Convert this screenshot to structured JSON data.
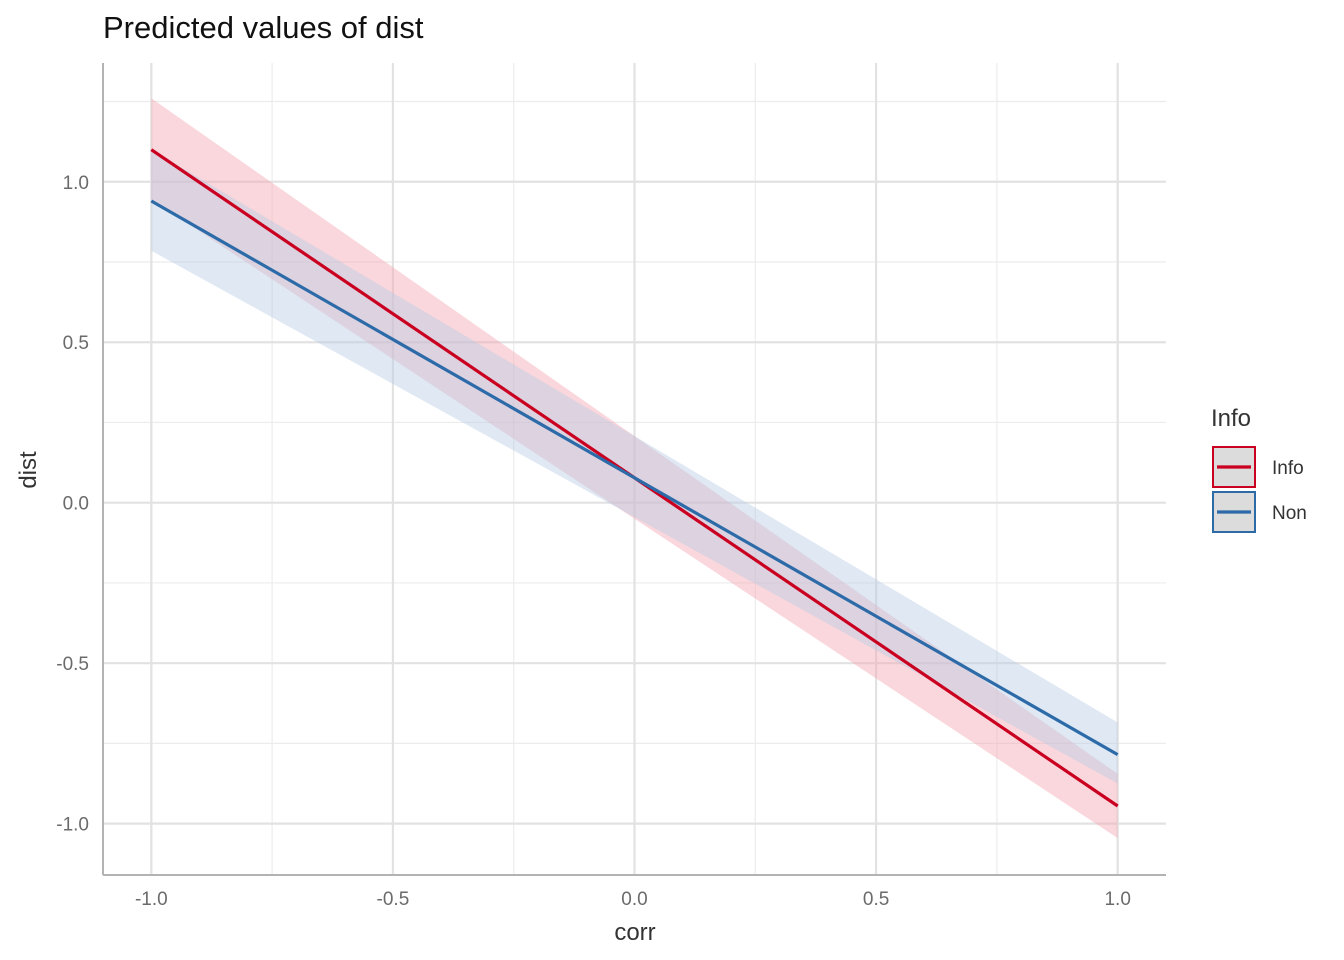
{
  "chart_data": {
    "type": "line",
    "title": "Predicted values of dist",
    "xlabel": "corr",
    "ylabel": "dist",
    "xlim": [
      -1.1,
      1.1
    ],
    "ylim": [
      -1.16,
      1.37
    ],
    "x_ticks": [
      -1.0,
      -0.5,
      0.0,
      0.5,
      1.0
    ],
    "x_tick_labels": [
      "-1.0",
      "-0.5",
      "0.0",
      "0.5",
      "1.0"
    ],
    "y_ticks": [
      -1.0,
      -0.5,
      0.0,
      0.5,
      1.0
    ],
    "y_tick_labels": [
      "-1.0",
      "-0.5",
      "0.0",
      "0.5",
      "1.0"
    ],
    "grid": true,
    "legend": {
      "title": "Info",
      "position": "right"
    },
    "series": [
      {
        "name": "Info",
        "color": "#ca0020",
        "band_color": "#f4a6b2",
        "x": [
          -1.0,
          1.0
        ],
        "y": [
          1.1,
          -0.945
        ],
        "ci_lower": [
          0.945,
          -1.045
        ],
        "ci_upper": [
          1.26,
          -0.845
        ]
      },
      {
        "name": "Non",
        "color": "#2c6aa8",
        "band_color": "#b8cce4",
        "x": [
          -1.0,
          1.0
        ],
        "y": [
          0.94,
          -0.785
        ],
        "ci_lower": [
          0.785,
          -0.875
        ],
        "ci_upper": [
          1.1,
          -0.685
        ]
      }
    ]
  }
}
